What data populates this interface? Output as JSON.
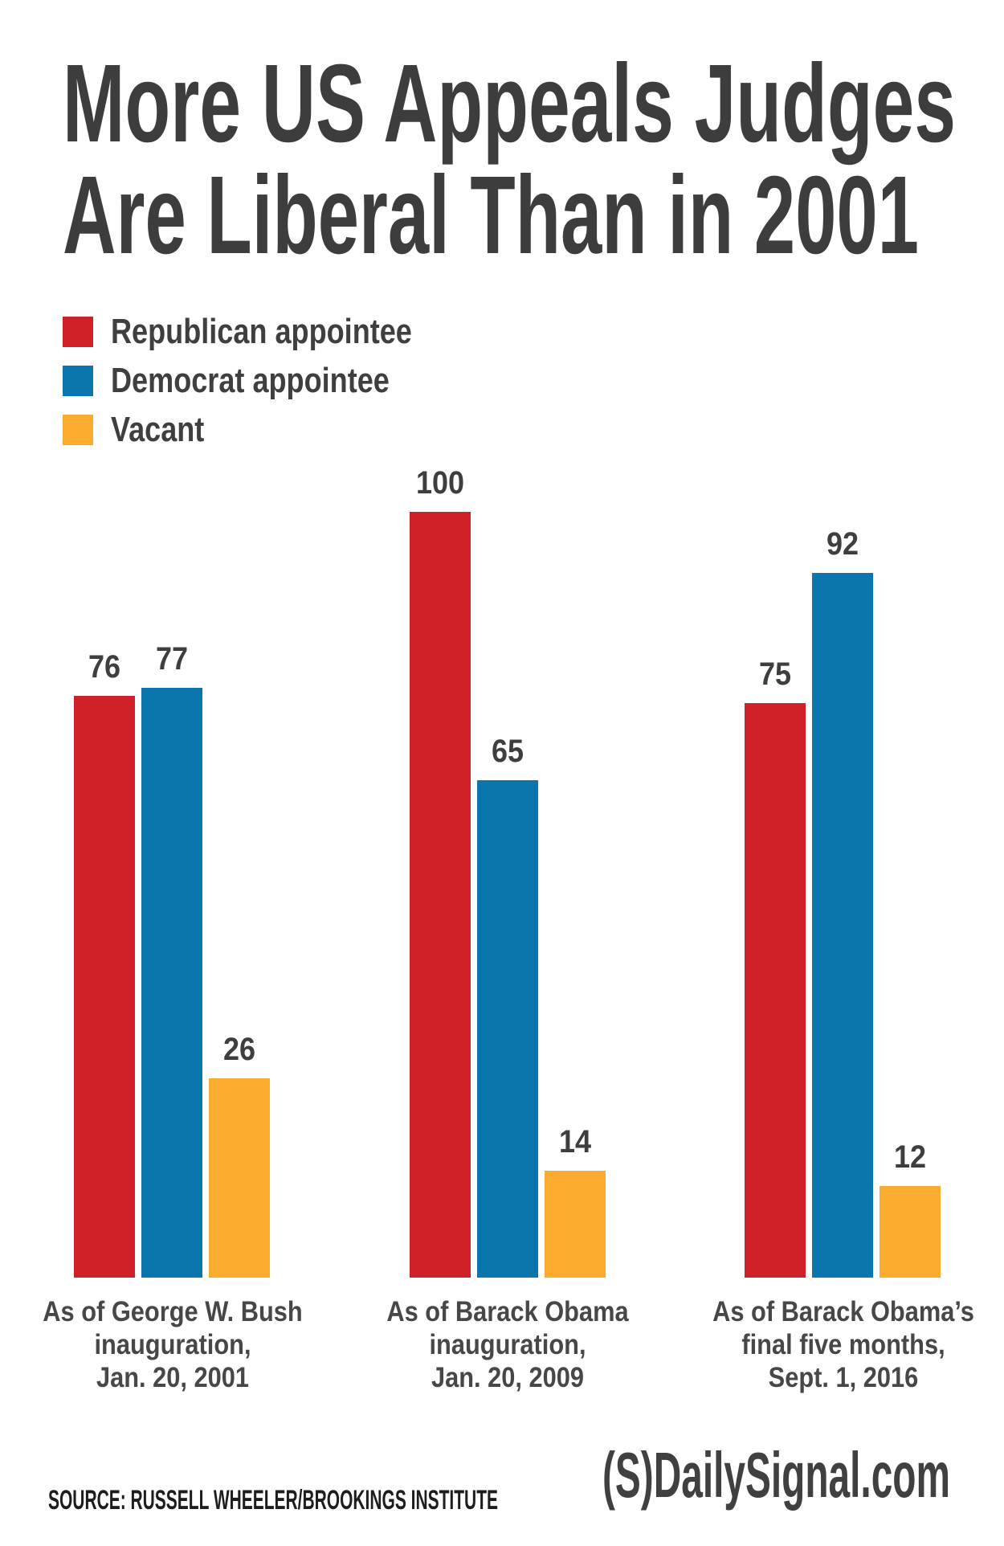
{
  "title": {
    "line1": "More US Appeals Judges",
    "line2": "Are Liberal Than in 2001"
  },
  "colors": {
    "republican": "#cf2127",
    "democrat": "#0b75ad",
    "vacant": "#fbab2d",
    "title_text": "#3d3d3d",
    "legend_text": "#3f3f3f",
    "value_text": "#3e3e3e",
    "label_text": "#474747",
    "source_text": "#1d1d1d",
    "logo_text": "#404040",
    "background": "#ffffff"
  },
  "legend": {
    "items": [
      {
        "label": "Republican appointee",
        "color_key": "republican"
      },
      {
        "label": "Democrat appointee",
        "color_key": "democrat"
      },
      {
        "label": "Vacant",
        "color_key": "vacant"
      }
    ]
  },
  "chart_data": {
    "type": "bar",
    "title": "More US Appeals Judges Are Liberal Than in 2001",
    "categories": [
      "As of George W. Bush inauguration, Jan. 20, 2001",
      "As of Barack Obama inauguration, Jan. 20, 2009",
      "As of Barack Obama’s final five months, Sept. 1, 2016"
    ],
    "series": [
      {
        "name": "Republican appointee",
        "color_key": "republican",
        "values": [
          76,
          100,
          75
        ]
      },
      {
        "name": "Democrat appointee",
        "color_key": "democrat",
        "values": [
          77,
          65,
          92
        ]
      },
      {
        "name": "Vacant",
        "color_key": "vacant",
        "values": [
          26,
          14,
          12
        ]
      }
    ],
    "ylim": [
      0,
      100
    ],
    "grid": false,
    "axes_shown": false,
    "value_labels": true,
    "legend_position": "top-left"
  },
  "groups": [
    {
      "label_lines": [
        "As of George W. Bush",
        "inauguration,",
        "Jan. 20, 2001"
      ]
    },
    {
      "label_lines": [
        "As of Barack Obama",
        "inauguration,",
        "Jan. 20, 2009"
      ]
    },
    {
      "label_lines": [
        "As of Barack Obama’s",
        "final five months,",
        "Sept. 1, 2016"
      ]
    }
  ],
  "footer": {
    "source": "SOURCE: RUSSELL WHEELER/BROOKINGS INSTITUTE",
    "logo": "(S)DailySignal.com"
  }
}
